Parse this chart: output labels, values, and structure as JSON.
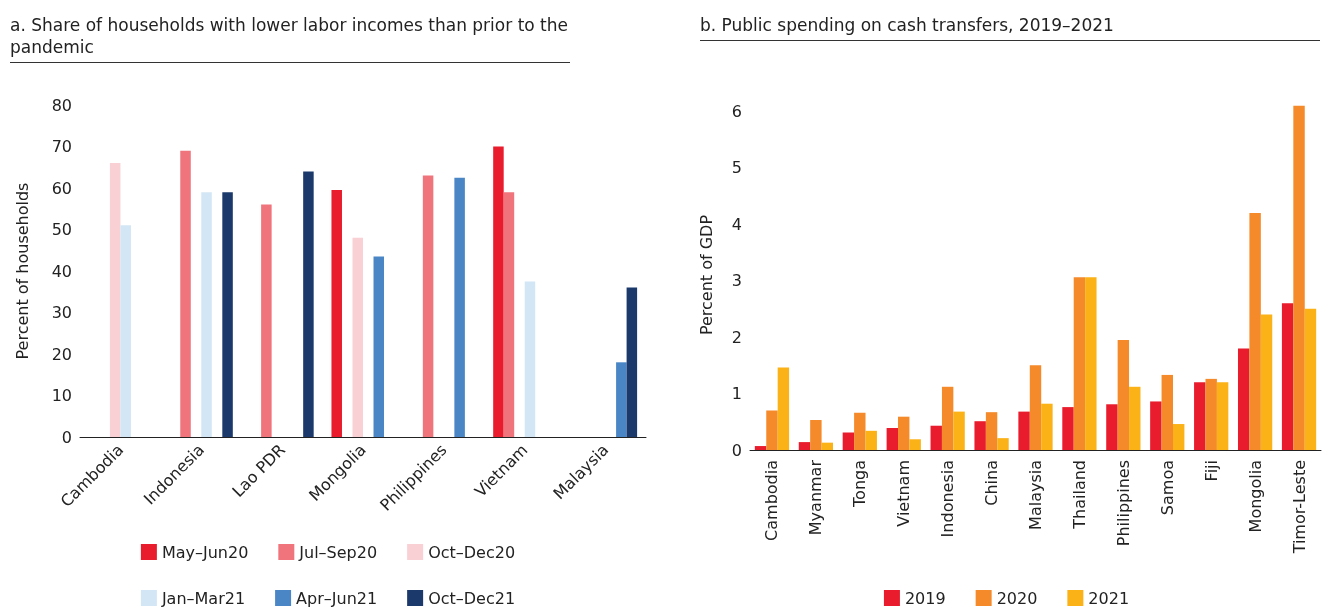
{
  "chart_data": [
    {
      "type": "bar",
      "title": "a. Share of households with lower labor incomes than prior to the pandemic",
      "ylabel": "Percent of households",
      "categories": [
        "Cambodia",
        "Indonesia",
        "Lao PDR",
        "Mongolia",
        "Philippines",
        "Vietnam",
        "Malaysia"
      ],
      "series": [
        {
          "name": "May–Jun20",
          "color": "#e81c2c",
          "values": [
            null,
            null,
            null,
            59.5,
            null,
            70,
            null
          ]
        },
        {
          "name": "Jul–Sep20",
          "color": "#f0747c",
          "values": [
            null,
            69,
            56,
            null,
            63,
            59,
            null
          ]
        },
        {
          "name": "Oct–Dec20",
          "color": "#f9d0d4",
          "values": [
            66,
            null,
            null,
            48,
            null,
            null,
            null
          ]
        },
        {
          "name": "Jan–Mar21",
          "color": "#d2e6f5",
          "values": [
            51,
            59,
            null,
            null,
            null,
            37.5,
            null
          ]
        },
        {
          "name": "Apr–Jun21",
          "color": "#4a86c6",
          "values": [
            null,
            null,
            null,
            43.5,
            62.5,
            null,
            18
          ]
        },
        {
          "name": "Oct–Dec21",
          "color": "#1b3a6b",
          "values": [
            null,
            59,
            64,
            null,
            null,
            null,
            36
          ]
        }
      ],
      "ylim": [
        0,
        80
      ],
      "yticks": [
        0,
        10,
        20,
        30,
        40,
        50,
        60,
        70,
        80
      ],
      "grid": false,
      "legend": "bottom"
    },
    {
      "type": "bar",
      "title": "b. Public spending on cash transfers, 2019–2021",
      "ylabel": "Percent of GDP",
      "categories": [
        "Cambodia",
        "Myanmar",
        "Tonga",
        "Vietnam",
        "Indonesia",
        "China",
        "Malaysia",
        "Thailand",
        "Philippines",
        "Samoa",
        "Fiji",
        "Mongolia",
        "Timor-Leste"
      ],
      "series": [
        {
          "name": "2019",
          "color": "#e81c2c",
          "values": [
            0.07,
            0.14,
            0.31,
            0.39,
            0.43,
            0.51,
            0.68,
            0.76,
            0.81,
            0.86,
            1.2,
            1.8,
            2.6
          ]
        },
        {
          "name": "2020",
          "color": "#f58a2a",
          "values": [
            0.7,
            0.53,
            0.66,
            0.59,
            1.12,
            0.67,
            1.5,
            3.06,
            1.95,
            1.33,
            1.26,
            4.2,
            6.1
          ]
        },
        {
          "name": "2021",
          "color": "#fbb217",
          "values": [
            1.46,
            0.13,
            0.34,
            0.19,
            0.68,
            0.21,
            0.82,
            3.06,
            1.12,
            0.46,
            1.2,
            2.4,
            2.5
          ]
        }
      ],
      "ylim": [
        0,
        6.2
      ],
      "yticks": [
        0,
        1,
        2,
        3,
        4,
        5,
        6
      ],
      "grid": false,
      "legend": "bottom"
    }
  ]
}
